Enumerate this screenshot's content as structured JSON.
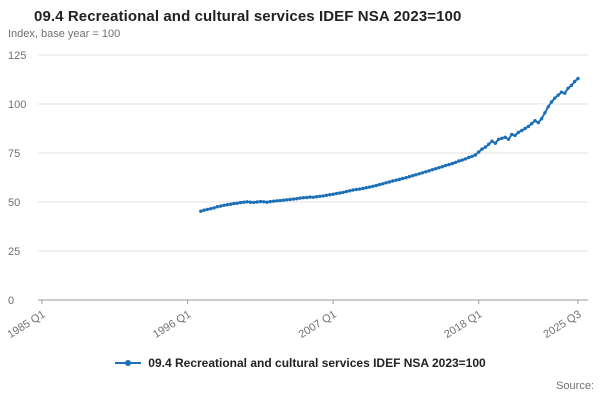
{
  "header": {
    "title": "09.4 Recreational and cultural services IDEF NSA 2023=100",
    "subtitle": "Index, base year = 100"
  },
  "legend": {
    "label": "09.4 Recreational and cultural services IDEF NSA 2023=100",
    "marker_color": "#1d70b8"
  },
  "footer": {
    "source_label": "Source:"
  },
  "chart_data": {
    "type": "line",
    "title": "09.4 Recreational and cultural services IDEF NSA 2023=100",
    "subtitle": "Index, base year = 100",
    "xlabel": "",
    "ylabel": "Index, base year = 100",
    "ylim": [
      0,
      125
    ],
    "y_ticks": [
      0,
      25,
      50,
      75,
      100,
      125
    ],
    "xlim_years": [
      1985.0,
      2025.5
    ],
    "x_ticks": [
      {
        "label": "1985 Q1",
        "year": 1985.0
      },
      {
        "label": "1996 Q1",
        "year": 1996.0
      },
      {
        "label": "2007 Q1",
        "year": 2007.0
      },
      {
        "label": "2018 Q1",
        "year": 2018.0
      },
      {
        "label": "2025 Q3",
        "year": 2025.5
      }
    ],
    "grid": "horizontal",
    "legend_position": "bottom",
    "series": [
      {
        "name": "09.4 Recreational and cultural services IDEF NSA 2023=100",
        "color": "#1d70b8",
        "x_start_year": 1997.0,
        "x_step_years": 0.25,
        "x_start_label": "1997 Q1",
        "x_end_label": "2025 Q3",
        "values": [
          45.3,
          45.8,
          46.2,
          46.6,
          47.0,
          47.6,
          47.9,
          48.3,
          48.6,
          48.9,
          49.2,
          49.4,
          49.7,
          49.9,
          50.1,
          49.9,
          49.8,
          50.0,
          50.2,
          50.1,
          49.9,
          50.2,
          50.4,
          50.6,
          50.7,
          50.9,
          51.1,
          51.3,
          51.5,
          51.7,
          52.0,
          52.2,
          52.3,
          52.5,
          52.4,
          52.7,
          52.9,
          53.1,
          53.4,
          53.7,
          54.0,
          54.3,
          54.6,
          54.9,
          55.3,
          55.7,
          56.1,
          56.4,
          56.6,
          56.9,
          57.3,
          57.6,
          58.0,
          58.4,
          58.9,
          59.3,
          59.8,
          60.2,
          60.7,
          61.1,
          61.5,
          62.0,
          62.4,
          62.9,
          63.4,
          63.9,
          64.4,
          64.9,
          65.4,
          65.9,
          66.5,
          67.0,
          67.5,
          68.0,
          68.6,
          69.1,
          69.6,
          70.2,
          70.9,
          71.4,
          72.0,
          72.7,
          73.3,
          74.0,
          75.5,
          77.0,
          78.0,
          79.5,
          81.0,
          80.0,
          82.0,
          82.5,
          83.0,
          82.0,
          84.5,
          84.0,
          85.5,
          86.5,
          87.5,
          88.5,
          90.0,
          91.5,
          90.5,
          92.5,
          95.5,
          98.5,
          101.0,
          103.0,
          104.5,
          106.0,
          105.5,
          108.0,
          109.5,
          111.5,
          113.0
        ]
      }
    ]
  }
}
